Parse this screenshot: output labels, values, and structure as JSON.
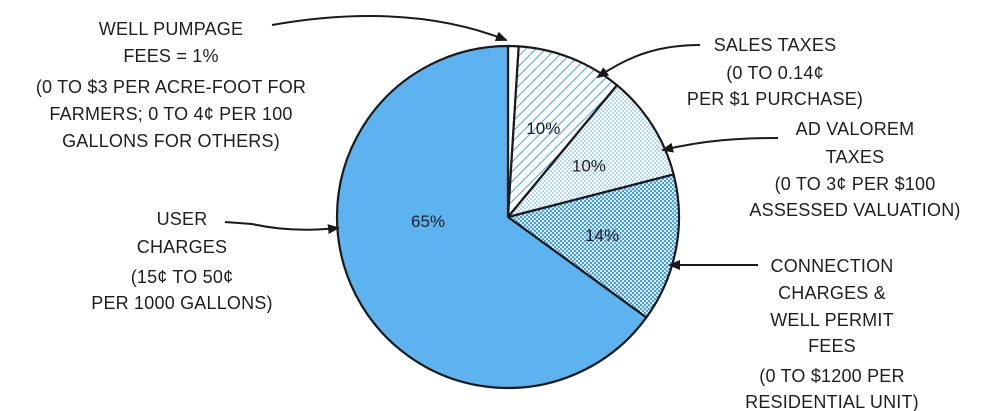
{
  "chart_data": {
    "type": "pie",
    "title": "",
    "slices": [
      {
        "key": "well_pumpage",
        "value": 1,
        "percent_label": "",
        "label_lines": [
          "WELL PUMPAGE",
          "FEES = 1%",
          "(0 TO $3 PER ACRE-FOOT FOR",
          "FARMERS; 0 TO 4¢ PER 100",
          "GALLONS FOR OTHERS)"
        ],
        "color": "#ffffff",
        "pattern": "none"
      },
      {
        "key": "sales_taxes",
        "value": 10,
        "percent_label": "10%",
        "label_lines": [
          "SALES TAXES",
          "(0 TO 0.14¢",
          "PER $1 PURCHASE)"
        ],
        "color": "#5aaee8",
        "pattern": "diagonal-hatch"
      },
      {
        "key": "ad_valorem",
        "value": 10,
        "percent_label": "10%",
        "label_lines": [
          "AD VALOREM",
          "TAXES",
          "(0 TO 3¢ PER $100",
          "ASSESSED VALUATION)"
        ],
        "color": "#5aaee8",
        "pattern": "fine-dots"
      },
      {
        "key": "connection_charges",
        "value": 14,
        "percent_label": "14%",
        "label_lines": [
          "CONNECTION",
          "CHARGES &",
          "WELL PERMIT",
          "FEES",
          "(0 TO $1200 PER",
          "RESIDENTIAL UNIT)"
        ],
        "color": "#5aaee8",
        "pattern": "dense-dots"
      },
      {
        "key": "user_charges",
        "value": 65,
        "percent_label": "65%",
        "label_lines": [
          "USER",
          "CHARGES",
          "(15¢ TO 50¢",
          "PER 1000 GALLONS)"
        ],
        "color": "#5db3ef",
        "pattern": "solid"
      }
    ],
    "start_angle": "12 o'clock",
    "direction": "clockwise",
    "legend": "none",
    "outline_color": "#1a1a1a",
    "text_color": "#1e1e1e"
  }
}
